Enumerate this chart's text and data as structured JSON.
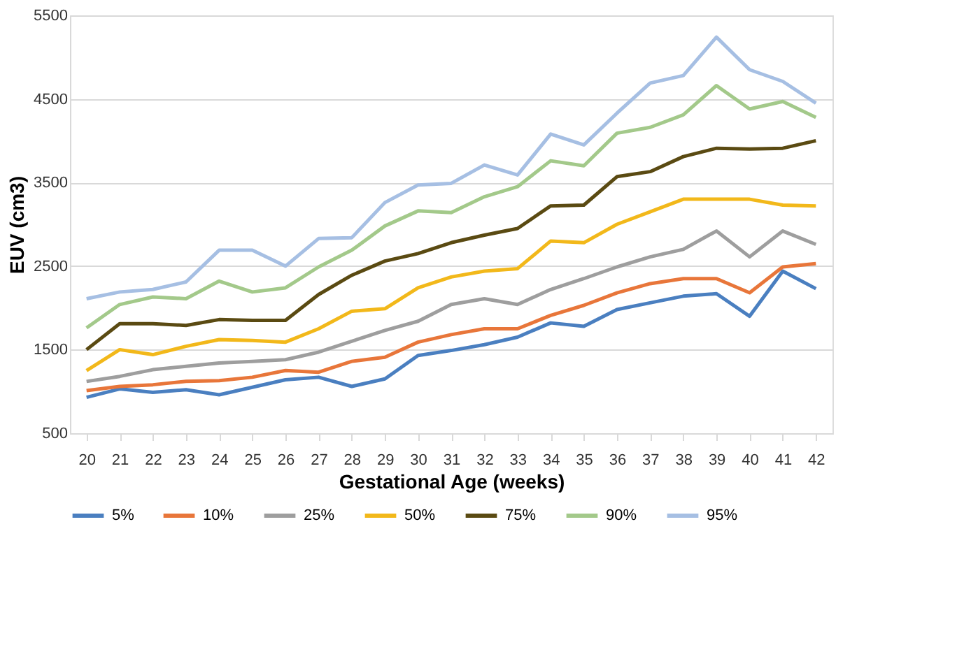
{
  "chart_data": {
    "type": "line",
    "xlabel": "Gestational Age (weeks)",
    "ylabel": "EUV (cm3)",
    "categories": [
      "20",
      "21",
      "22",
      "23",
      "24",
      "25",
      "26",
      "27",
      "28",
      "29",
      "30",
      "31",
      "32",
      "33",
      "34",
      "35",
      "36",
      "37",
      "38",
      "39",
      "40",
      "41",
      "42"
    ],
    "ylim": [
      500,
      5500
    ],
    "yticks": [
      500,
      1500,
      2500,
      3500,
      4500,
      5500
    ],
    "grid": "y",
    "legend": "bottom",
    "marker": "none",
    "line_style": "solid",
    "series": [
      {
        "name": "5%",
        "color": "#4a7fc0",
        "values": [
          930,
          1030,
          990,
          1020,
          960,
          1050,
          1140,
          1170,
          1060,
          1150,
          1430,
          1490,
          1560,
          1650,
          1820,
          1780,
          1980,
          2060,
          2140,
          2170,
          1900,
          2440,
          2230
        ]
      },
      {
        "name": "10%",
        "color": "#e8763a",
        "values": [
          1010,
          1060,
          1080,
          1120,
          1130,
          1170,
          1250,
          1230,
          1360,
          1410,
          1590,
          1680,
          1750,
          1750,
          1910,
          2030,
          2180,
          2290,
          2350,
          2350,
          2180,
          2490,
          2530
        ]
      },
      {
        "name": "25%",
        "color": "#9e9e9e",
        "values": [
          1120,
          1180,
          1260,
          1300,
          1340,
          1360,
          1380,
          1470,
          1600,
          1730,
          1840,
          2040,
          2110,
          2040,
          2220,
          2350,
          2490,
          2610,
          2700,
          2920,
          2610,
          2920,
          2760
        ]
      },
      {
        "name": "50%",
        "color": "#f2b81a",
        "values": [
          1250,
          1500,
          1440,
          1540,
          1620,
          1610,
          1590,
          1750,
          1960,
          1990,
          2240,
          2370,
          2440,
          2470,
          2800,
          2780,
          3000,
          3150,
          3300,
          3300,
          3300,
          3230,
          3220
        ]
      },
      {
        "name": "75%",
        "color": "#5a4a12",
        "values": [
          1500,
          1810,
          1810,
          1790,
          1860,
          1850,
          1850,
          2160,
          2390,
          2560,
          2650,
          2780,
          2870,
          2950,
          3220,
          3230,
          3570,
          3630,
          3810,
          3910,
          3900,
          3910,
          4000
        ]
      },
      {
        "name": "90%",
        "color": "#a3c98a",
        "values": [
          1760,
          2040,
          2130,
          2110,
          2320,
          2190,
          2240,
          2490,
          2690,
          2980,
          3160,
          3140,
          3330,
          3450,
          3760,
          3700,
          4090,
          4160,
          4310,
          4660,
          4380,
          4470,
          4280
        ]
      },
      {
        "name": "95%",
        "color": "#a6bfe3",
        "values": [
          2110,
          2190,
          2220,
          2310,
          2690,
          2690,
          2500,
          2830,
          2840,
          3260,
          3470,
          3490,
          3710,
          3590,
          4080,
          3950,
          4330,
          4690,
          4780,
          5240,
          4850,
          4710,
          4450
        ]
      }
    ]
  }
}
